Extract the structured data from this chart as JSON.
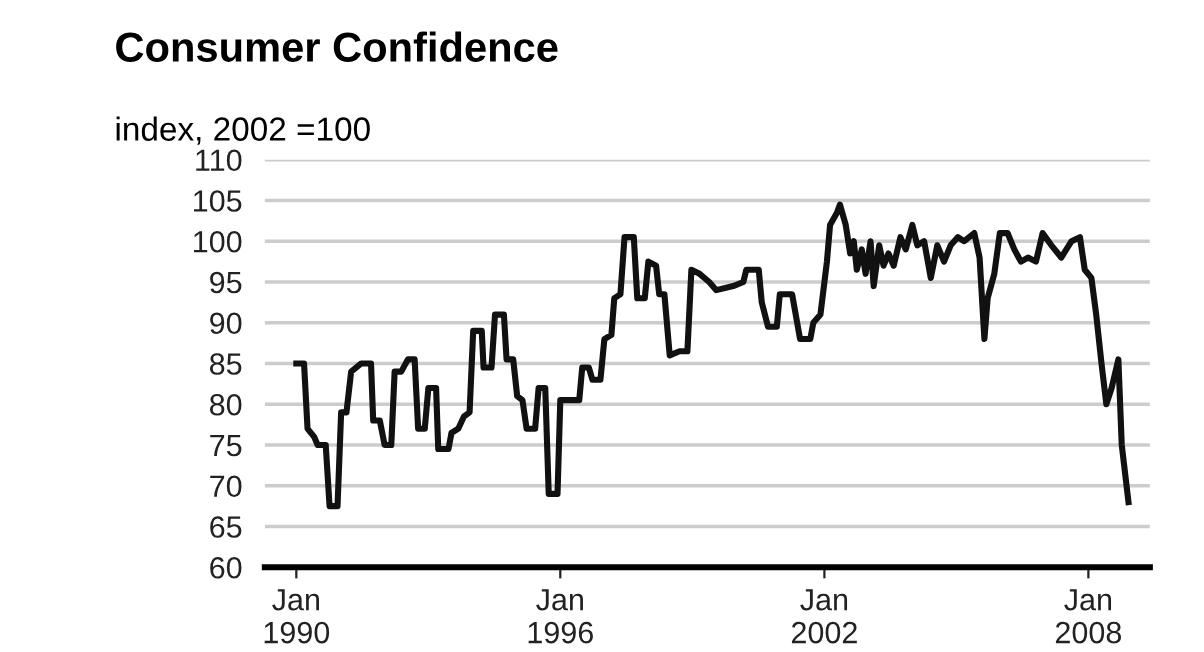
{
  "chart_data": {
    "type": "line",
    "title": "Consumer Confidence",
    "ylabel": "index, 2002 =100",
    "xlim": [
      "1989-04-15",
      "2009-05-25"
    ],
    "ylim": [
      60,
      110
    ],
    "xticks": [
      {
        "value": "1990-01-01",
        "label": "Jan\n1990"
      },
      {
        "value": "1996-01-01",
        "label": "Jan\n1996"
      },
      {
        "value": "2002-01-01",
        "label": "Jan\n2002"
      },
      {
        "value": "2008-01-01",
        "label": "Jan\n2008"
      }
    ],
    "yticks": [
      60,
      65,
      70,
      75,
      80,
      85,
      90,
      95,
      100,
      105,
      110
    ],
    "grid": "y",
    "marker": "none",
    "line_style": "solid",
    "series": [
      {
        "color": "#111111",
        "x": [
          "1990-01-01",
          "1990-03-06",
          "1990-04-04",
          "1990-05-29",
          "1990-06-27",
          "1990-09-02",
          "1990-10-04",
          "1990-12-09",
          "1991-01-08",
          "1991-02-21",
          "1991-04-01",
          "1991-06-24",
          "1991-09-13",
          "1991-10-01",
          "1991-11-25",
          "1992-01-04",
          "1992-02-28",
          "1992-03-27",
          "1992-05-21",
          "1992-07-15",
          "1992-09-09",
          "1992-10-08",
          "1992-12-02",
          "1993-01-01",
          "1993-03-06",
          "1993-03-24",
          "1993-06-17",
          "1993-07-12",
          "1993-09-06",
          "1993-10-23",
          "1993-12-09",
          "1994-01-08",
          "1994-03-20",
          "1994-04-04",
          "1994-06-09",
          "1994-07-08",
          "1994-09-20",
          "1994-10-12",
          "1994-12-06",
          "1995-01-08",
          "1995-02-21",
          "1995-03-27",
          "1995-06-06",
          "1995-07-05",
          "1995-08-29",
          "1995-09-27",
          "1995-12-09",
          "1996-01-01",
          "1996-06-06",
          "1996-07-01",
          "1996-08-25",
          "1996-09-24",
          "1996-11-29",
          "1997-01-01",
          "1997-02-28",
          "1997-03-24",
          "1997-05-14",
          "1997-06-17",
          "1997-09-02",
          "1997-10-01",
          "1997-12-02",
          "1998-01-01",
          "1998-03-06",
          "1998-04-01",
          "1998-05-14",
          "1998-06-27",
          "1998-09-17",
          "1998-11-21",
          "1998-12-24",
          "1999-03-02",
          "1999-05-21",
          "1999-07-19",
          "1999-12-06",
          "2000-02-28",
          "2000-03-24",
          "2000-07-05",
          "2000-07-30",
          "2000-09-20",
          "2000-12-02",
          "2000-12-27",
          "2001-04-08",
          "2001-06-13",
          "2001-09-06",
          "2001-10-01",
          "2001-11-29",
          "2002-01-22",
          "2002-02-17",
          "2002-04-15",
          "2002-05-10",
          "2002-06-27",
          "2002-08-03",
          "2002-09-02",
          "2002-09-27",
          "2002-11-07",
          "2002-12-09",
          "2003-01-19",
          "2003-02-14",
          "2003-04-01",
          "2003-05-07",
          "2003-06-17",
          "2003-07-30",
          "2003-09-24",
          "2003-11-07",
          "2004-01-01",
          "2004-02-11",
          "2004-04-08",
          "2004-06-02",
          "2004-07-26",
          "2004-09-20",
          "2004-11-14",
          "2005-01-12",
          "2005-03-06",
          "2005-05-29",
          "2005-07-12",
          "2005-08-21",
          "2005-09-17",
          "2005-11-11",
          "2005-12-27",
          "2006-03-02",
          "2006-04-26",
          "2006-06-20",
          "2006-08-18",
          "2006-10-23",
          "2006-12-17",
          "2007-02-28",
          "2007-05-21",
          "2007-08-14",
          "2007-10-23",
          "2007-12-02",
          "2008-01-26",
          "2008-03-06",
          "2008-04-19",
          "2008-05-29",
          "2008-07-12",
          "2008-09-06",
          "2008-10-04",
          "2008-11-29"
        ],
        "values": [
          85,
          85,
          77,
          76,
          75,
          75,
          67.5,
          67.5,
          79,
          79,
          84,
          85,
          85,
          78,
          78,
          75,
          75,
          84,
          84,
          85.5,
          85.5,
          77,
          77,
          82,
          82,
          74.5,
          74.5,
          76.5,
          77,
          78.5,
          79,
          89,
          89,
          84.5,
          84.5,
          91,
          91,
          85.5,
          85.5,
          81,
          80.5,
          77,
          77,
          82,
          82,
          69,
          69,
          80.5,
          80.5,
          84.5,
          84.5,
          83,
          83,
          88,
          88.5,
          93,
          93.5,
          100.5,
          100.5,
          93,
          93,
          97.5,
          97,
          93.5,
          93.5,
          86,
          86.5,
          86.5,
          96.5,
          96,
          95,
          94,
          94.5,
          95,
          96.5,
          96.5,
          92.5,
          89.5,
          89.5,
          93.5,
          93.5,
          88,
          88,
          90,
          91,
          97.5,
          102,
          103.5,
          104.5,
          102,
          98.5,
          100,
          96.5,
          99,
          96,
          100,
          94.5,
          99.5,
          97,
          98.5,
          97,
          100.5,
          99,
          102,
          99.5,
          100,
          95.5,
          99.5,
          97.5,
          99.5,
          100.5,
          100,
          101,
          98,
          88,
          93,
          96,
          101,
          101,
          99,
          97.5,
          98,
          97.5,
          101,
          99.5,
          98,
          100,
          100.5,
          96.5,
          95.5,
          91,
          85,
          80,
          82,
          85.5,
          75,
          68
        ]
      }
    ]
  }
}
